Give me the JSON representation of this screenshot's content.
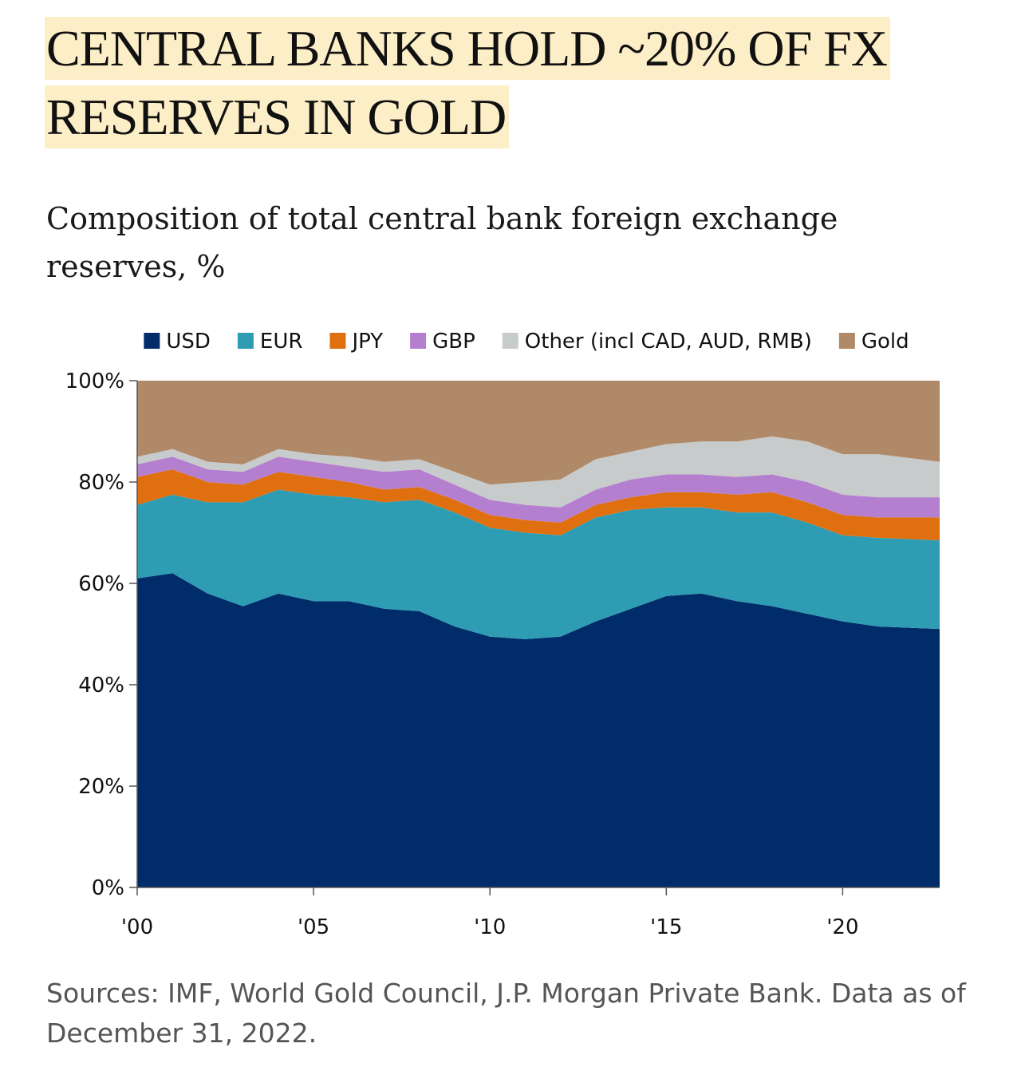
{
  "header": {
    "title": "CENTRAL BANKS HOLD ~20% OF FX RESERVES IN GOLD",
    "subtitle": "Composition of total central bank foreign exchange reserves, %"
  },
  "footer": {
    "sources": "Sources: IMF, World Gold Council, J.P. Morgan Private Bank. Data as of December 31, 2022."
  },
  "chart_data": {
    "type": "area",
    "stacked": true,
    "title": "",
    "xlabel": "",
    "ylabel": "",
    "x": [
      2000,
      2001,
      2002,
      2003,
      2004,
      2005,
      2006,
      2007,
      2008,
      2009,
      2010,
      2011,
      2012,
      2013,
      2014,
      2015,
      2016,
      2017,
      2018,
      2019,
      2020,
      2021,
      2022.75
    ],
    "xlim": [
      2000,
      2022.75
    ],
    "x_ticks": [
      "'00",
      "'05",
      "'10",
      "'15",
      "'20"
    ],
    "x_tick_values": [
      2000,
      2005,
      2010,
      2015,
      2020
    ],
    "ylim": [
      0,
      100
    ],
    "y_ticks": [
      "0%",
      "20%",
      "40%",
      "60%",
      "80%",
      "100%"
    ],
    "y_tick_values": [
      0,
      20,
      40,
      60,
      80,
      100
    ],
    "grid": false,
    "legend_position": "top",
    "series": [
      {
        "name": "USD",
        "color": "#002d6a",
        "values": [
          61,
          62,
          58,
          55.5,
          58,
          56.5,
          56.5,
          55,
          54.5,
          51.5,
          49.5,
          49,
          49.5,
          52.5,
          55,
          57.5,
          58,
          56.5,
          55.5,
          54,
          52.5,
          51.5,
          51
        ]
      },
      {
        "name": "EUR",
        "color": "#2e9cb3",
        "values": [
          14.5,
          15.5,
          18,
          20.5,
          20.5,
          21,
          20.5,
          21,
          22,
          22.5,
          21.5,
          21,
          20,
          20.5,
          19.5,
          17.5,
          17,
          17.5,
          18.5,
          18,
          17,
          17.5,
          17.5
        ]
      },
      {
        "name": "JPY",
        "color": "#e0700f",
        "values": [
          5.5,
          5,
          4,
          3.5,
          3.5,
          3.5,
          3,
          2.5,
          2.5,
          2.5,
          2.5,
          2.5,
          2.5,
          2.5,
          2.5,
          3,
          3,
          3.5,
          4,
          4,
          4,
          4,
          4.5
        ]
      },
      {
        "name": "GBP",
        "color": "#b57fd0",
        "values": [
          2.5,
          2.5,
          2.5,
          2.5,
          3,
          3,
          3,
          3.5,
          3.5,
          3,
          3,
          3,
          3,
          3,
          3.5,
          3.5,
          3.5,
          3.5,
          3.5,
          4,
          4,
          4,
          4
        ]
      },
      {
        "name": "Other (incl CAD, AUD, RMB)",
        "color": "#c7cbcb",
        "values": [
          1.5,
          1.5,
          1.5,
          1.5,
          1.5,
          1.5,
          2,
          2,
          2,
          2.5,
          3,
          4.5,
          5.5,
          6,
          5.5,
          6,
          6.5,
          7,
          7.5,
          8,
          8,
          8.5,
          7
        ]
      },
      {
        "name": "Gold",
        "color": "#b08968",
        "values": [
          15,
          13.5,
          16,
          16.5,
          13.5,
          14.5,
          15,
          16,
          15.5,
          18,
          20.5,
          20,
          19.5,
          15.5,
          14,
          12.5,
          12,
          12,
          11,
          12,
          14.5,
          14.5,
          16
        ]
      }
    ]
  }
}
